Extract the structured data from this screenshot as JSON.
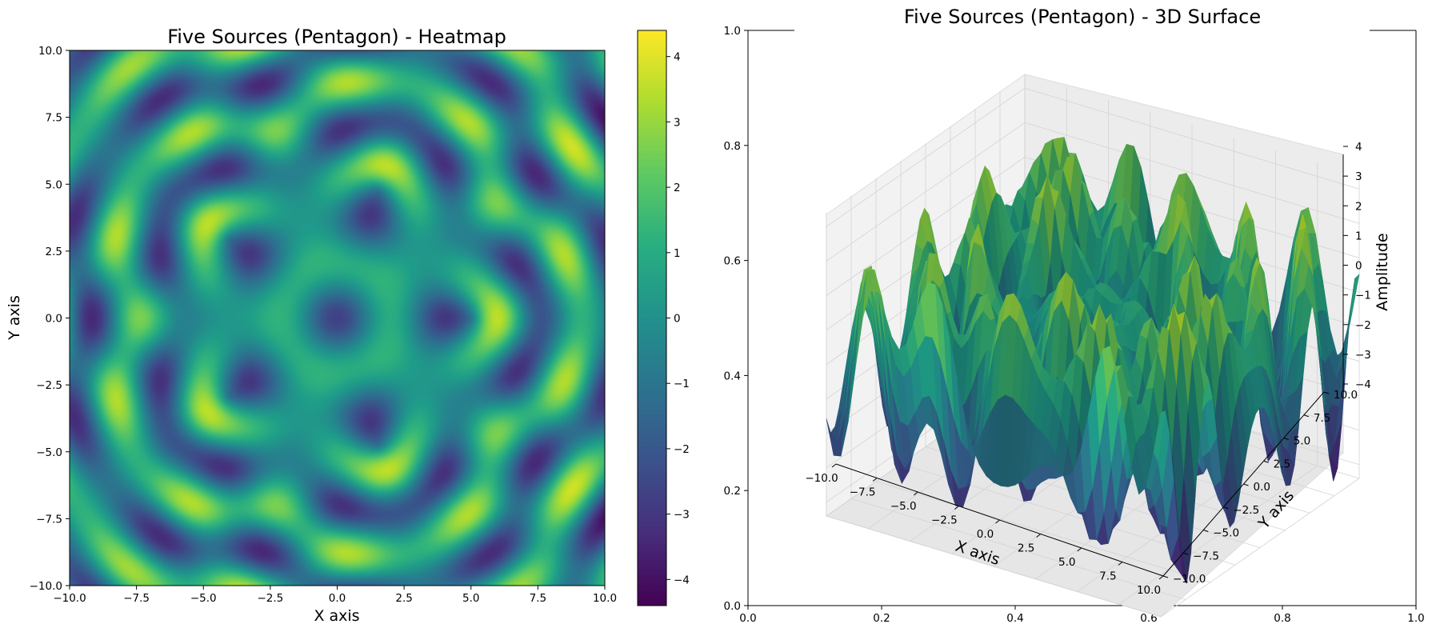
{
  "chart_data": [
    {
      "type": "heatmap",
      "title": "Five Sources (Pentagon) - Heatmap",
      "xlabel": "X axis",
      "ylabel": "Y axis",
      "xlim": [
        -10,
        10
      ],
      "ylim": [
        -10,
        10
      ],
      "xticks": [
        "−10.0",
        "−7.5",
        "−5.0",
        "−2.5",
        "0.0",
        "2.5",
        "5.0",
        "7.5",
        "10.0"
      ],
      "yticks": [
        "−10.0",
        "−7.5",
        "−5.0",
        "−2.5",
        "0.0",
        "2.5",
        "5.0",
        "7.5",
        "10.0"
      ],
      "colormap": "viridis",
      "sources": 5,
      "source_layout": "pentagon",
      "value_range": [
        -4.4,
        4.4
      ],
      "colorbar": {
        "ticks": [
          "−4",
          "−3",
          "−2",
          "−1",
          "0",
          "1",
          "2",
          "3",
          "4"
        ],
        "tick_values": [
          -4,
          -3,
          -2,
          -1,
          0,
          1,
          2,
          3,
          4
        ],
        "range": [
          -4.4,
          4.4
        ]
      },
      "grid": false
    },
    {
      "type": "surface",
      "title": "Five Sources (Pentagon) - 3D Surface",
      "xlabel": "X axis",
      "ylabel": "Y axis",
      "zlabel": "Amplitude",
      "xlim": [
        -10,
        10
      ],
      "ylim": [
        -10,
        10
      ],
      "zlim": [
        -4.4,
        4.4
      ],
      "xticks": [
        "−10.0",
        "−7.5",
        "−5.0",
        "−2.5",
        "0.0",
        "2.5",
        "5.0",
        "7.5",
        "10.0"
      ],
      "yticks": [
        "−10.0",
        "−7.5",
        "−5.0",
        "−2.5",
        "0.0",
        "2.5",
        "5.0",
        "7.5",
        "10.0"
      ],
      "zticks": [
        "−4",
        "−3",
        "−2",
        "−1",
        "0",
        "1",
        "2",
        "3",
        "4"
      ],
      "colormap": "viridis",
      "grid": true,
      "background_axes": {
        "xlim": [
          0,
          1
        ],
        "ylim": [
          0,
          1
        ],
        "xticks": [
          "0.0",
          "0.2",
          "0.4",
          "0.6",
          "0.8",
          "1.0"
        ],
        "yticks": [
          "0.0",
          "0.2",
          "0.4",
          "0.6",
          "0.8",
          "1.0"
        ]
      }
    }
  ]
}
